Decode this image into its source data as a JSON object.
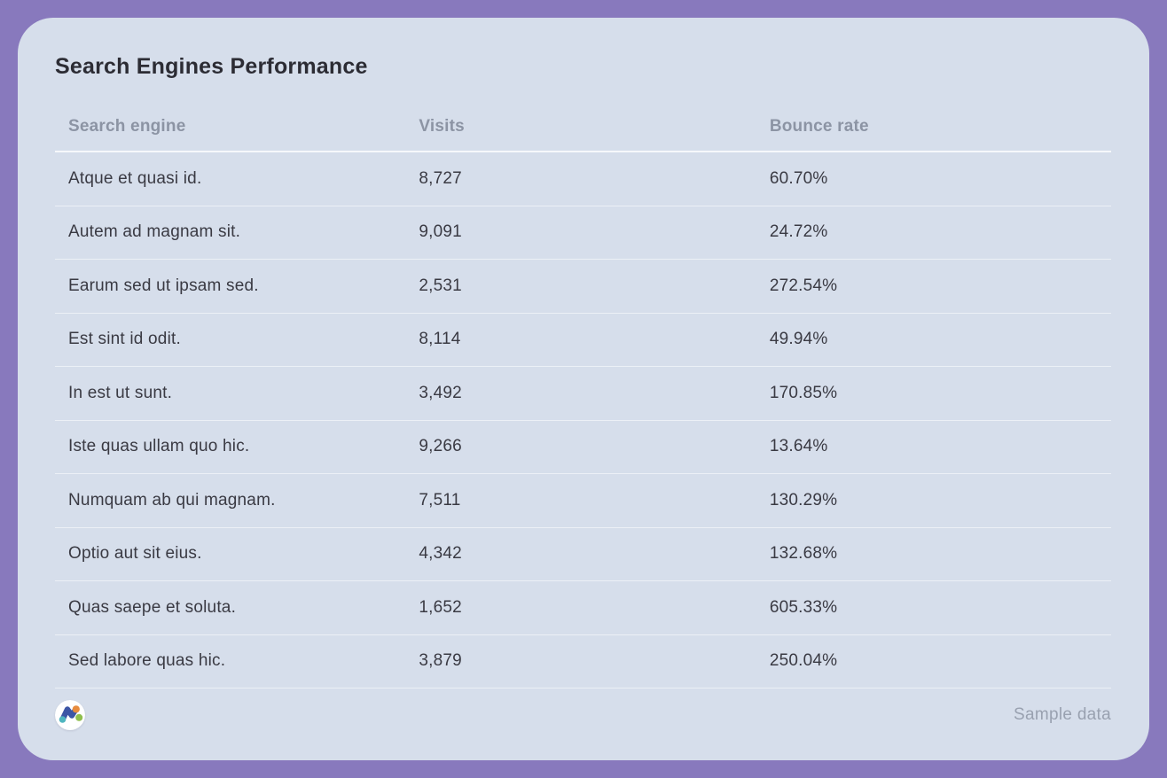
{
  "widget": {
    "title": "Search Engines Performance"
  },
  "table": {
    "columns": [
      "Search engine",
      "Visits",
      "Bounce rate"
    ],
    "rows": [
      {
        "engine": "Atque et quasi id.",
        "visits": "8,727",
        "bounce": "60.70%"
      },
      {
        "engine": "Autem ad magnam sit.",
        "visits": "9,091",
        "bounce": "24.72%"
      },
      {
        "engine": "Earum sed ut ipsam sed.",
        "visits": "2,531",
        "bounce": "272.54%"
      },
      {
        "engine": "Est sint id odit.",
        "visits": "8,114",
        "bounce": "49.94%"
      },
      {
        "engine": "In est ut sunt.",
        "visits": "3,492",
        "bounce": "170.85%"
      },
      {
        "engine": "Iste quas ullam quo hic.",
        "visits": "9,266",
        "bounce": "13.64%"
      },
      {
        "engine": "Numquam ab qui magnam.",
        "visits": "7,511",
        "bounce": "130.29%"
      },
      {
        "engine": "Optio aut sit eius.",
        "visits": "4,342",
        "bounce": "132.68%"
      },
      {
        "engine": "Quas saepe et soluta.",
        "visits": "1,652",
        "bounce": "605.33%"
      },
      {
        "engine": "Sed labore quas hic.",
        "visits": "3,879",
        "bounce": "250.04%"
      }
    ]
  },
  "footer": {
    "note": "Sample data",
    "logo_icon": "brand-m-logo"
  },
  "colors": {
    "page_background": "#8879bd",
    "card_background": "#d6deeb",
    "title_text": "#2c2c34",
    "header_text": "#8c94a4",
    "body_text": "#3a3a43",
    "muted_text": "#99a1b0",
    "logo_blue": "#3c55a5",
    "logo_teal": "#4fb5bf",
    "logo_orange": "#e78b3d",
    "logo_green": "#8fbf4d"
  }
}
